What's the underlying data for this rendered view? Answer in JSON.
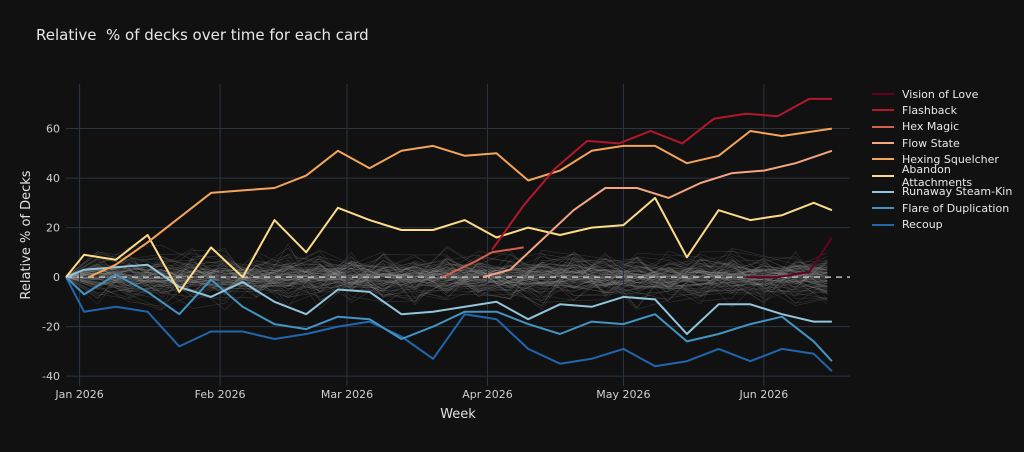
{
  "chart_data": {
    "type": "line",
    "title": "Relative  % of decks over time for each card",
    "xlabel": "Week",
    "ylabel": "Relative % of Decks",
    "x_range": [
      "2025-12-29",
      "2026-06-20"
    ],
    "ylim": [
      -44,
      78
    ],
    "x_ticks": [
      {
        "date": "2026-01-01",
        "label": "Jan 2026"
      },
      {
        "date": "2026-02-01",
        "label": "Feb 2026"
      },
      {
        "date": "2026-03-01",
        "label": "Mar 2026"
      },
      {
        "date": "2026-04-01",
        "label": "Apr 2026"
      },
      {
        "date": "2026-05-01",
        "label": "May 2026"
      },
      {
        "date": "2026-06-01",
        "label": "Jun 2026"
      }
    ],
    "y_ticks": [
      -40,
      -20,
      0,
      20,
      40,
      60
    ],
    "grid": true,
    "zero_line": "dashed",
    "legend_position": "right",
    "background_band": "many faint grey lines for all other cards, centered near 0",
    "series": [
      {
        "name": "Vision of Love",
        "color": "#67001f",
        "x": [
          "2026-05-28",
          "2026-06-04",
          "2026-06-11",
          "2026-06-16"
        ],
        "y": [
          0,
          0,
          2,
          16
        ]
      },
      {
        "name": "Flashback",
        "color": "#b2182b",
        "x": [
          "2026-04-02",
          "2026-04-09",
          "2026-04-16",
          "2026-04-23",
          "2026-04-30",
          "2026-05-07",
          "2026-05-14",
          "2026-05-21",
          "2026-05-28",
          "2026-06-04",
          "2026-06-11",
          "2026-06-16"
        ],
        "y": [
          11,
          29,
          44,
          55,
          54,
          59,
          54,
          64,
          66,
          65,
          72,
          72
        ]
      },
      {
        "name": "Hex Magic",
        "color": "#d6604d",
        "x": [
          "2026-03-22",
          "2026-03-29",
          "2026-04-02",
          "2026-04-09"
        ],
        "y": [
          0,
          6,
          10,
          12
        ]
      },
      {
        "name": "Flow State",
        "color": "#f4a582",
        "x": [
          "2026-03-31",
          "2026-04-06",
          "2026-04-13",
          "2026-04-20",
          "2026-04-27",
          "2026-05-04",
          "2026-05-11",
          "2026-05-18",
          "2026-05-25",
          "2026-06-01",
          "2026-06-08",
          "2026-06-16"
        ],
        "y": [
          0,
          3,
          15,
          27,
          36,
          36,
          32,
          38,
          42,
          43,
          46,
          51
        ]
      },
      {
        "name": "Hexing Squelcher",
        "color": "#f4a55a",
        "x": [
          "2026-01-03",
          "2026-01-09",
          "2026-01-16",
          "2026-01-23",
          "2026-01-30",
          "2026-02-06",
          "2026-02-13",
          "2026-02-20",
          "2026-02-27",
          "2026-03-06",
          "2026-03-13",
          "2026-03-20",
          "2026-03-27",
          "2026-04-03",
          "2026-04-10",
          "2026-04-17",
          "2026-04-24",
          "2026-05-01",
          "2026-05-08",
          "2026-05-15",
          "2026-05-22",
          "2026-05-29",
          "2026-06-05",
          "2026-06-16"
        ],
        "y": [
          0,
          5,
          14,
          24,
          34,
          35,
          36,
          41,
          51,
          44,
          51,
          53,
          49,
          50,
          39,
          43,
          51,
          53,
          53,
          46,
          49,
          59,
          57,
          60
        ]
      },
      {
        "name": "Abandon Attachments",
        "color": "#fddb88",
        "x": [
          "2025-12-29",
          "2026-01-02",
          "2026-01-09",
          "2026-01-16",
          "2026-01-23",
          "2026-01-30",
          "2026-02-06",
          "2026-02-13",
          "2026-02-20",
          "2026-02-27",
          "2026-03-06",
          "2026-03-13",
          "2026-03-20",
          "2026-03-27",
          "2026-04-03",
          "2026-04-10",
          "2026-04-17",
          "2026-04-24",
          "2026-05-01",
          "2026-05-08",
          "2026-05-15",
          "2026-05-22",
          "2026-05-29",
          "2026-06-05",
          "2026-06-12",
          "2026-06-16"
        ],
        "y": [
          0,
          9,
          7,
          17,
          -6,
          12,
          0,
          23,
          10,
          28,
          23,
          19,
          19,
          23,
          16,
          20,
          17,
          20,
          21,
          32,
          8,
          27,
          23,
          25,
          30,
          27
        ]
      },
      {
        "name": "Runaway Steam-Kin",
        "color": "#92c5de",
        "x": [
          "2025-12-29",
          "2026-01-02",
          "2026-01-09",
          "2026-01-16",
          "2026-01-23",
          "2026-01-30",
          "2026-02-06",
          "2026-02-13",
          "2026-02-20",
          "2026-02-27",
          "2026-03-06",
          "2026-03-13",
          "2026-03-20",
          "2026-03-27",
          "2026-04-03",
          "2026-04-10",
          "2026-04-17",
          "2026-04-24",
          "2026-05-01",
          "2026-05-08",
          "2026-05-15",
          "2026-05-22",
          "2026-05-29",
          "2026-06-05",
          "2026-06-12",
          "2026-06-16"
        ],
        "y": [
          0,
          3,
          4,
          5,
          -4,
          -8,
          -2,
          -10,
          -15,
          -5,
          -6,
          -15,
          -14,
          -12,
          -10,
          -17,
          -11,
          -12,
          -8,
          -9,
          -23,
          -11,
          -11,
          -15,
          -18,
          -18
        ]
      },
      {
        "name": "Flare of Duplication",
        "color": "#4393c3",
        "x": [
          "2025-12-29",
          "2026-01-02",
          "2026-01-09",
          "2026-01-16",
          "2026-01-23",
          "2026-01-30",
          "2026-02-06",
          "2026-02-13",
          "2026-02-20",
          "2026-02-27",
          "2026-03-06",
          "2026-03-13",
          "2026-03-20",
          "2026-03-27",
          "2026-04-03",
          "2026-04-10",
          "2026-04-17",
          "2026-04-24",
          "2026-05-01",
          "2026-05-08",
          "2026-05-15",
          "2026-05-22",
          "2026-05-29",
          "2026-06-05",
          "2026-06-12",
          "2026-06-16"
        ],
        "y": [
          0,
          -7,
          1,
          -6,
          -15,
          -1,
          -12,
          -19,
          -21,
          -16,
          -17,
          -25,
          -20,
          -14,
          -14,
          -19,
          -23,
          -18,
          -19,
          -15,
          -26,
          -23,
          -19,
          -16,
          -26,
          -34
        ]
      },
      {
        "name": "Recoup",
        "color": "#2166ac",
        "x": [
          "2025-12-29",
          "2026-01-02",
          "2026-01-09",
          "2026-01-16",
          "2026-01-23",
          "2026-01-30",
          "2026-02-06",
          "2026-02-13",
          "2026-02-20",
          "2026-02-27",
          "2026-03-06",
          "2026-03-13",
          "2026-03-20",
          "2026-03-27",
          "2026-04-03",
          "2026-04-10",
          "2026-04-17",
          "2026-04-24",
          "2026-05-01",
          "2026-05-08",
          "2026-05-15",
          "2026-05-22",
          "2026-05-29",
          "2026-06-05",
          "2026-06-12",
          "2026-06-16"
        ],
        "y": [
          0,
          -14,
          -12,
          -14,
          -28,
          -22,
          -22,
          -25,
          -23,
          -20,
          -18,
          -24,
          -33,
          -15,
          -17,
          -29,
          -35,
          -33,
          -29,
          -36,
          -34,
          -29,
          -34,
          -29,
          -31,
          -38
        ]
      }
    ]
  }
}
